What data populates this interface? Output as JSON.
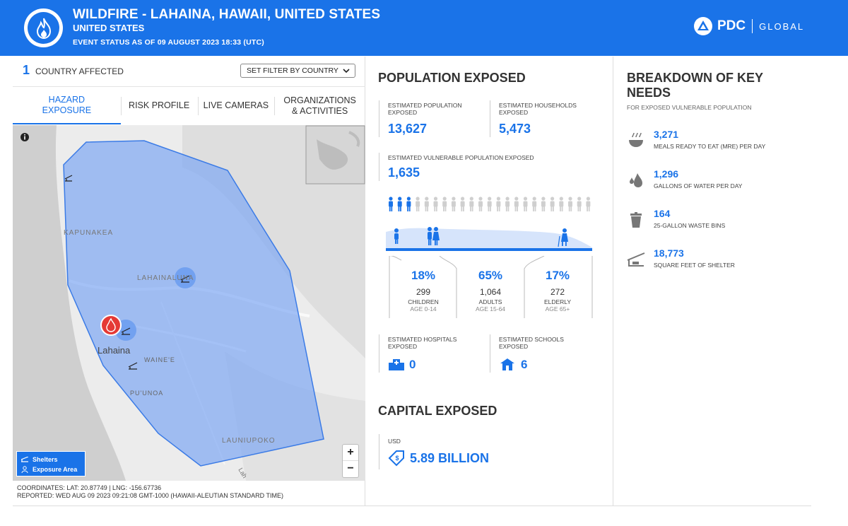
{
  "header": {
    "title": "WILDFIRE - LAHAINA, HAWAII, UNITED STATES",
    "subtitle": "UNITED STATES",
    "status": "EVENT STATUS AS OF 09 AUGUST 2023 18:33 (UTC)",
    "brand": "PDC",
    "brand_suffix": "GLOBAL",
    "accent": "#1a73e8"
  },
  "left": {
    "countries_count": "1",
    "countries_label": "COUNTRY AFFECTED",
    "filter_value": "SET FILTER BY COUNTRY",
    "tabs": [
      {
        "label": "HAZARD EXPOSURE",
        "active": true
      },
      {
        "label": "RISK PROFILE"
      },
      {
        "label": "LIVE CAMERAS"
      },
      {
        "label": "ORGANIZATIONS & ACTIVITIES"
      }
    ],
    "map": {
      "place_labels": [
        "KAPUNAKEA",
        "LAHAINALUNA",
        "Lahaina",
        "WAINE'E",
        "PU'UNOA",
        "LAUNIUPOKO",
        "Lah"
      ],
      "legend": [
        "Shelters",
        "Exposure Area"
      ],
      "zoom_in": "+",
      "zoom_out": "−"
    },
    "coordinates": "COORDINATES: LAT: 20.87749 | LNG: -156.67736",
    "reported": "REPORTED: WED AUG 09 2023 09:21:08 GMT-1000 (HAWAII-ALEUTIAN STANDARD TIME)"
  },
  "population": {
    "title": "POPULATION EXPOSED",
    "est_pop_label": "ESTIMATED POPULATION EXPOSED",
    "est_pop_value": "13,627",
    "households_label": "ESTIMATED HOUSEHOLDS EXPOSED",
    "households_value": "5,473",
    "vulnerable_label": "ESTIMATED VULNERABLE POPULATION EXPOSED",
    "vulnerable_value": "1,635",
    "groups": [
      {
        "pct": "18%",
        "count": "299",
        "name": "CHILDREN",
        "age": "AGE 0-14"
      },
      {
        "pct": "65%",
        "count": "1,064",
        "name": "ADULTS",
        "age": "AGE 15-64"
      },
      {
        "pct": "17%",
        "count": "272",
        "name": "ELDERLY",
        "age": "AGE 65+"
      }
    ],
    "hospitals_label": "ESTIMATED HOSPITALS EXPOSED",
    "hospitals_value": "0",
    "schools_label": "ESTIMATED SCHOOLS EXPOSED",
    "schools_value": "6"
  },
  "capital": {
    "title": "CAPITAL EXPOSED",
    "currency": "USD",
    "value": "5.89 BILLION"
  },
  "needs": {
    "title": "BREAKDOWN OF KEY NEEDS",
    "subtitle": "FOR EXPOSED VULNERABLE POPULATION",
    "items": [
      {
        "value": "3,271",
        "label": "MEALS READY TO EAT (MRE) PER DAY",
        "icon": "meal-icon"
      },
      {
        "value": "1,296",
        "label": "GALLONS OF WATER PER DAY",
        "icon": "water-drop-icon"
      },
      {
        "value": "164",
        "label": "25-GALLON WASTE BINS",
        "icon": "waste-bin-icon"
      },
      {
        "value": "18,773",
        "label": "SQUARE FEET OF SHELTER",
        "icon": "shelter-icon"
      }
    ]
  }
}
